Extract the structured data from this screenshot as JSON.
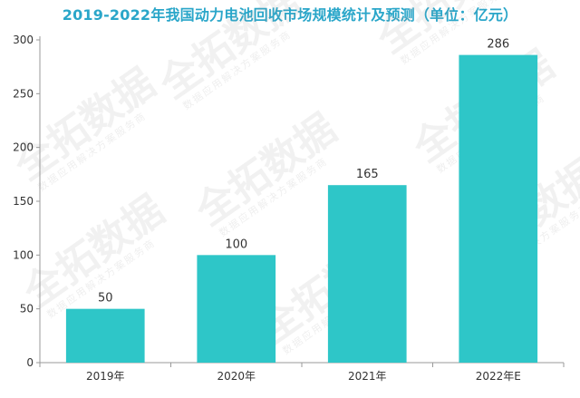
{
  "watermark": {
    "main": "全拓数据",
    "sub": "数据应用解决方案服务商"
  },
  "colors": {
    "bar": "#2ec6c8",
    "title": "#2aa6c9",
    "axis": "#999999"
  },
  "chart_data": {
    "type": "bar",
    "title": "2019-2022年我国动力电池回收市场规模统计及预测（单位：亿元）",
    "xlabel": "",
    "ylabel": "",
    "categories": [
      "2019年",
      "2020年",
      "2021年",
      "2022年E"
    ],
    "values": [
      50,
      100,
      165,
      286
    ],
    "ylim": [
      0,
      300
    ],
    "yticks": [
      0,
      50,
      100,
      150,
      200,
      250,
      300
    ],
    "grid": false,
    "legend": "none"
  }
}
